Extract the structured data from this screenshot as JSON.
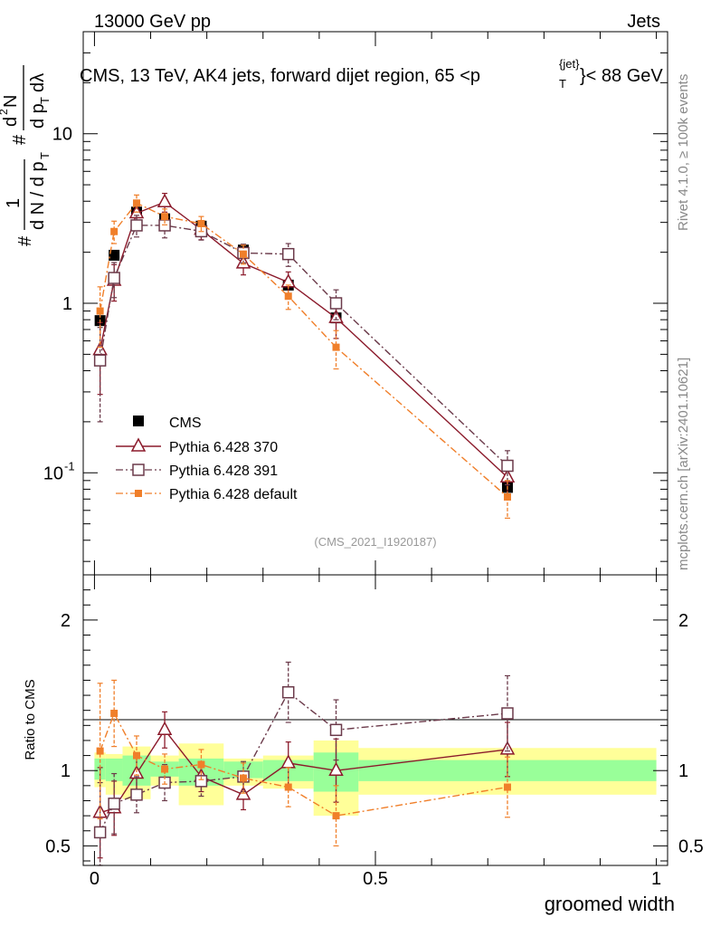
{
  "header": {
    "left": "13000 GeV pp",
    "right": "Jets",
    "side_rivet": "Rivet 4.1.0, ≥ 100k events",
    "side_mcplots": "mcplots.cern.ch [arXiv:2401.10621]",
    "watermark": "(CMS_2021_I1920187)"
  },
  "chart_data": [
    {
      "type": "scatter",
      "title": "CMS, 13 TeV, AK4 jets, forward dijet region, 65 <p_T^{jet}< 88 GeV",
      "title_parts": [
        "CMS, 13 TeV, AK4 jets, forward dijet region, 65 <p",
        "{jet}",
        "T",
        "}< 88 GeV"
      ],
      "ylabel": "# 1/dN/dpT # d²N/dpT dλ",
      "ylabel_parts": {
        "hash": "#",
        "one": "1",
        "den": "d N / d p",
        "subT": "T",
        "num_d": "d",
        "num_sup": "2",
        "num_N": "N",
        "den2": "d p",
        "lam": "dλ"
      },
      "yscale": "log",
      "ylim": [
        0.025,
        40
      ],
      "xlim": [
        -0.02,
        1.02
      ],
      "yticklabels": [
        {
          "v": 10,
          "label": "10"
        },
        {
          "v": 1,
          "label": "1"
        },
        {
          "v": 0.1,
          "label": "10",
          "sup": "-1"
        }
      ],
      "x_bins": [
        [
          0.0,
          0.02
        ],
        [
          0.02,
          0.05
        ],
        [
          0.05,
          0.1
        ],
        [
          0.1,
          0.15
        ],
        [
          0.15,
          0.23
        ],
        [
          0.23,
          0.3
        ],
        [
          0.3,
          0.39
        ],
        [
          0.39,
          0.47
        ],
        [
          0.47,
          1.0
        ]
      ],
      "x_centers": [
        0.01,
        0.035,
        0.075,
        0.125,
        0.19,
        0.265,
        0.345,
        0.43,
        0.735
      ],
      "series": [
        {
          "name": "CMS",
          "marker": "filled-square",
          "color": "#000000",
          "line": "none",
          "values": [
            0.79,
            1.92,
            3.45,
            3.15,
            2.85,
            2.06,
            1.28,
            0.82,
            0.082
          ],
          "err": [
            0.05,
            0.06,
            0.1,
            0.1,
            0.1,
            0.08,
            0.06,
            0.05,
            0.006
          ]
        },
        {
          "name": "Pythia 6.428 370",
          "marker": "open-triangle",
          "color": "#8b1a2b",
          "line": "solid",
          "values": [
            0.53,
            1.36,
            3.4,
            3.95,
            2.72,
            1.72,
            1.33,
            0.82,
            0.094
          ],
          "err": [
            0.24,
            0.33,
            0.5,
            0.5,
            0.35,
            0.25,
            0.2,
            0.2,
            0.02
          ]
        },
        {
          "name": "Pythia 6.428 391",
          "marker": "open-square",
          "color": "#6b3a4a",
          "line": "dashdot",
          "values": [
            0.46,
            1.41,
            2.88,
            2.88,
            2.66,
            1.98,
            1.95,
            1.0,
            0.11
          ],
          "err": [
            0.26,
            0.33,
            0.42,
            0.45,
            0.3,
            0.25,
            0.3,
            0.2,
            0.025
          ]
        },
        {
          "name": "Pythia 6.428 default",
          "marker": "small-filled-square",
          "color": "#f07f2a",
          "line": "dashdot",
          "values": [
            0.9,
            2.65,
            3.9,
            3.25,
            2.95,
            1.95,
            1.1,
            0.55,
            0.072
          ],
          "err": [
            0.35,
            0.4,
            0.45,
            0.35,
            0.3,
            0.25,
            0.18,
            0.14,
            0.018
          ]
        }
      ]
    },
    {
      "type": "scatter",
      "title": "",
      "xlabel": "groomed width",
      "ylabel": "Ratio to CMS",
      "ylim": [
        0.37,
        2.3
      ],
      "xlim": [
        -0.02,
        1.02
      ],
      "xticklabels": [
        {
          "v": 0,
          "label": "0"
        },
        {
          "v": 0.5,
          "label": "0.5"
        },
        {
          "v": 1,
          "label": "1"
        }
      ],
      "yticklabels": [
        {
          "v": 2,
          "label": "2"
        },
        {
          "v": 1,
          "label": "1"
        },
        {
          "v": 0.5,
          "label": "0.5"
        }
      ],
      "ytick_labels_right": [
        {
          "v": 2,
          "label": "2"
        },
        {
          "v": 1,
          "label": "1"
        },
        {
          "v": 0.5,
          "label": "0.5"
        }
      ],
      "bands": {
        "x_bins": [
          [
            0.0,
            0.02
          ],
          [
            0.02,
            0.05
          ],
          [
            0.05,
            0.1
          ],
          [
            0.1,
            0.15
          ],
          [
            0.15,
            0.23
          ],
          [
            0.23,
            0.3
          ],
          [
            0.3,
            0.39
          ],
          [
            0.39,
            0.47
          ],
          [
            0.47,
            1.0
          ]
        ],
        "stat_lo": [
          0.94,
          0.93,
          0.9,
          0.96,
          0.9,
          0.95,
          0.93,
          0.86,
          0.93
        ],
        "stat_hi": [
          1.08,
          1.08,
          1.1,
          1.06,
          1.08,
          1.06,
          1.07,
          1.12,
          1.07
        ],
        "tot_lo": [
          0.89,
          0.84,
          0.81,
          0.9,
          0.77,
          0.9,
          0.88,
          0.7,
          0.84
        ],
        "tot_hi": [
          1.12,
          1.11,
          1.16,
          1.1,
          1.18,
          1.08,
          1.1,
          1.2,
          1.15
        ],
        "stat_color": "#99ff99",
        "tot_color": "#ffff99"
      },
      "x_centers": [
        0.01,
        0.035,
        0.075,
        0.125,
        0.19,
        0.265,
        0.345,
        0.43,
        0.735
      ],
      "series": [
        {
          "name": "Pythia 6.428 370",
          "marker": "open-triangle",
          "color": "#8b1a2b",
          "line": "solid",
          "values": [
            0.72,
            0.75,
            0.98,
            1.27,
            0.96,
            0.84,
            1.05,
            1.0,
            1.14
          ],
          "err": [
            0.3,
            0.18,
            0.12,
            0.12,
            0.1,
            0.1,
            0.14,
            0.21,
            0.18
          ]
        },
        {
          "name": "Pythia 6.428 391",
          "marker": "open-square",
          "color": "#6b3a4a",
          "line": "dashdot",
          "values": [
            0.59,
            0.78,
            0.84,
            0.92,
            0.93,
            0.96,
            1.52,
            1.27,
            1.38
          ],
          "err": [
            0.33,
            0.2,
            0.12,
            0.12,
            0.1,
            0.1,
            0.2,
            0.2,
            0.25
          ]
        },
        {
          "name": "Pythia 6.428 default",
          "marker": "small-filled-square",
          "color": "#f07f2a",
          "line": "dashdot",
          "values": [
            1.13,
            1.38,
            1.1,
            1.01,
            1.04,
            0.95,
            0.89,
            0.7,
            0.89
          ],
          "err": [
            0.45,
            0.22,
            0.13,
            0.1,
            0.1,
            0.1,
            0.13,
            0.2,
            0.2
          ]
        }
      ]
    }
  ],
  "colors": {
    "axis": "#000000",
    "cms": "#000000",
    "p370": "#8b1a2b",
    "p391": "#6b3a4a",
    "pdefault": "#f07f2a",
    "side_text": "#888888",
    "watermark": "#999999"
  }
}
